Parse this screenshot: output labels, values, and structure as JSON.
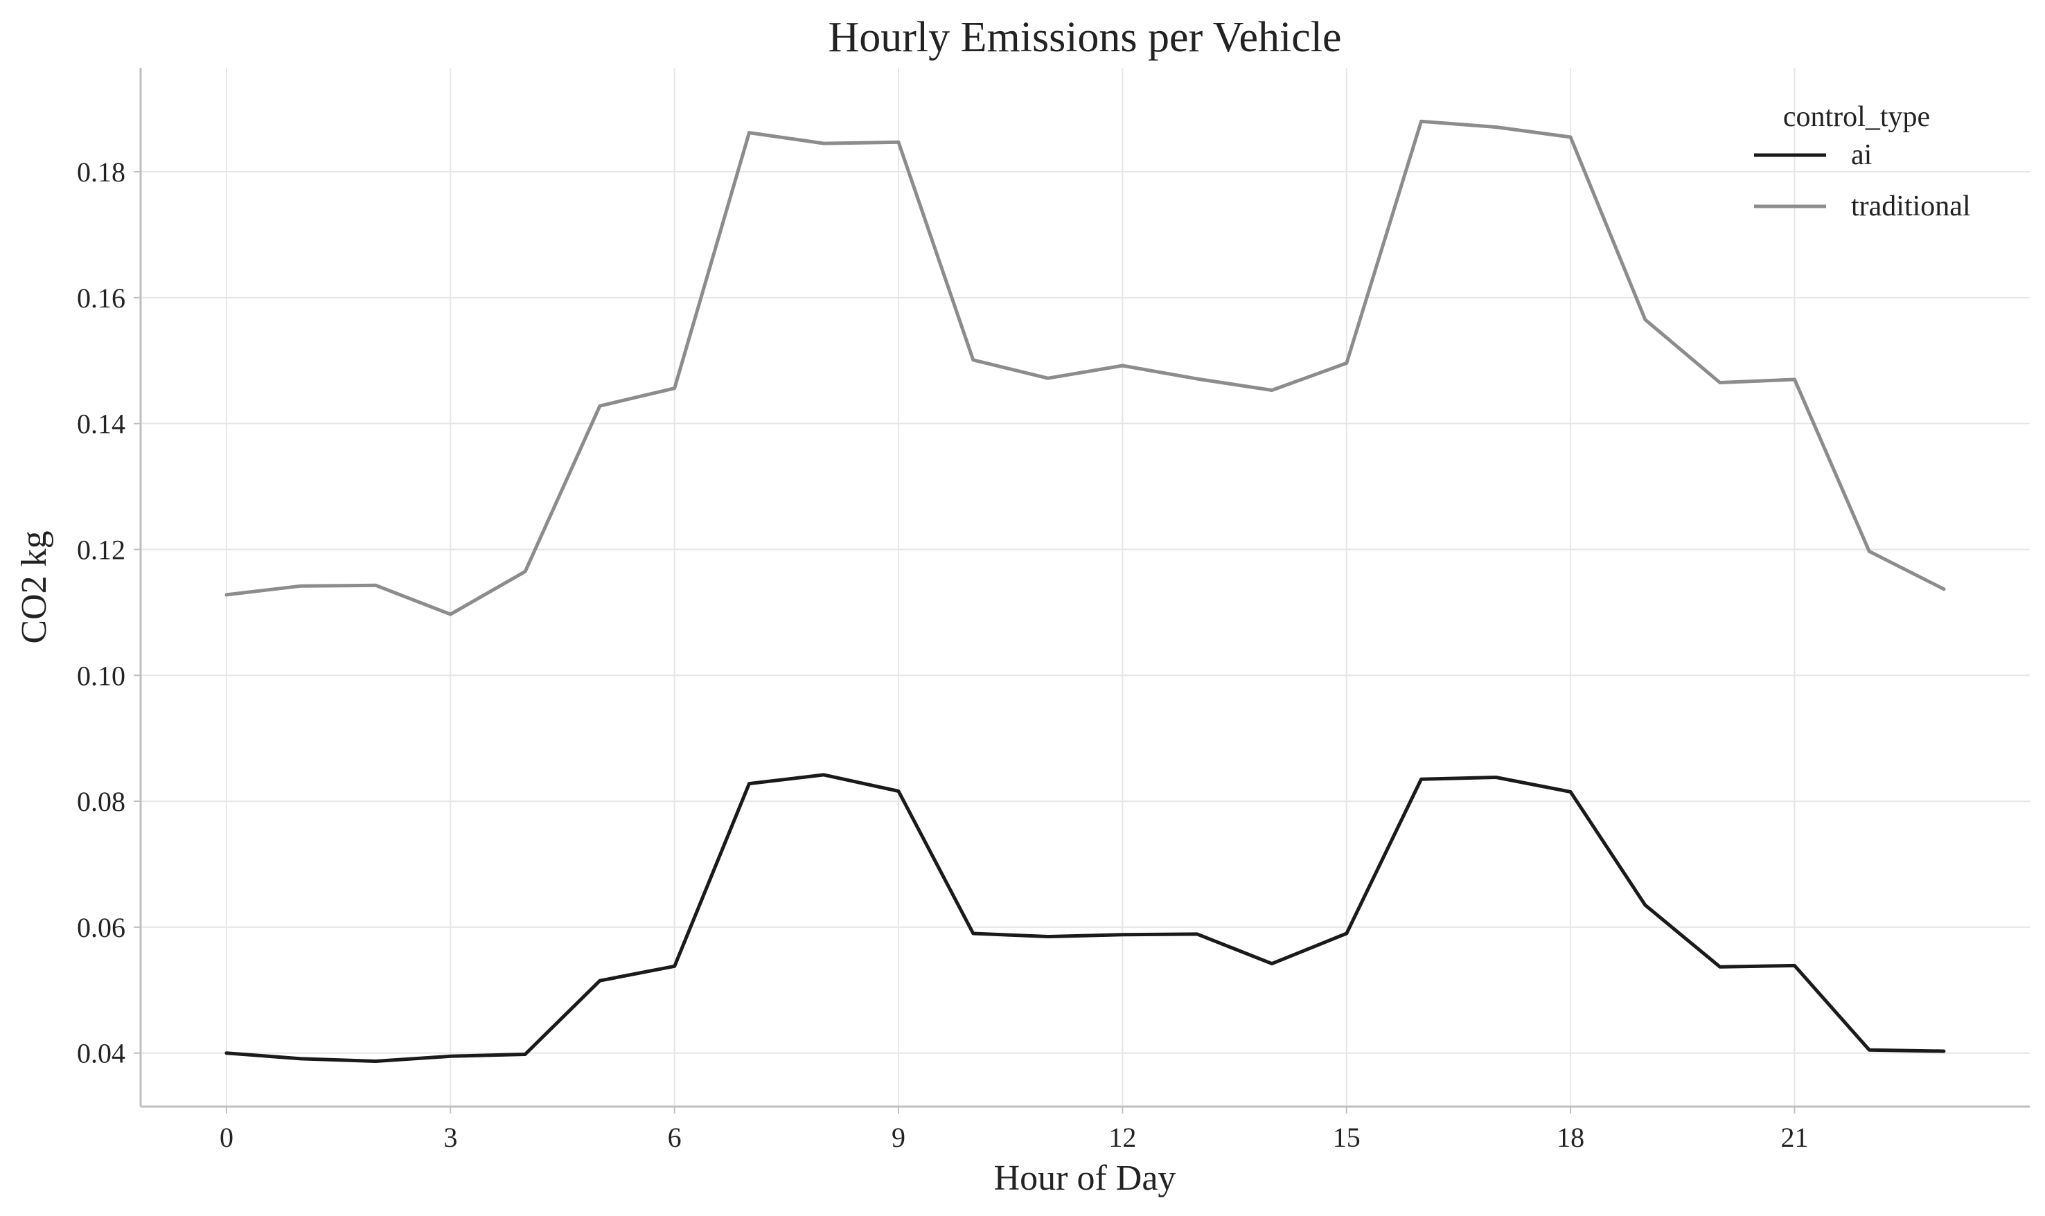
{
  "chart_data": {
    "type": "line",
    "title": "Hourly Emissions per Vehicle",
    "xlabel": "Hour of Day",
    "ylabel": "CO2 kg",
    "x": [
      0,
      1,
      2,
      3,
      4,
      5,
      6,
      7,
      8,
      9,
      10,
      11,
      12,
      13,
      14,
      15,
      16,
      17,
      18,
      19,
      20,
      21,
      22,
      23
    ],
    "xticks": [
      0,
      3,
      6,
      9,
      12,
      15,
      18,
      21
    ],
    "yticks": [
      0.04,
      0.06,
      0.08,
      0.1,
      0.12,
      0.14,
      0.16,
      0.18
    ],
    "xlim": [
      -1.15,
      24.15
    ],
    "ylim": [
      0.0315,
      0.1965
    ],
    "grid": true,
    "legend": {
      "title": "control_type",
      "position": "top-right"
    },
    "series": [
      {
        "name": "ai",
        "color": "#1a1a1a",
        "values": [
          0.04,
          0.0391,
          0.0387,
          0.0395,
          0.0398,
          0.0515,
          0.0538,
          0.0828,
          0.0842,
          0.0816,
          0.059,
          0.0585,
          0.0588,
          0.0589,
          0.0542,
          0.059,
          0.0835,
          0.0838,
          0.0815,
          0.0635,
          0.0537,
          0.0539,
          0.0405,
          0.0403
        ]
      },
      {
        "name": "traditional",
        "color": "#8c8c8c",
        "values": [
          0.1128,
          0.1142,
          0.1143,
          0.1097,
          0.1165,
          0.1428,
          0.1456,
          0.1862,
          0.1845,
          0.1847,
          0.1501,
          0.1472,
          0.1492,
          0.1471,
          0.1453,
          0.1496,
          0.188,
          0.1871,
          0.1855,
          0.1565,
          0.1465,
          0.147,
          0.1197,
          0.1137
        ]
      }
    ]
  }
}
